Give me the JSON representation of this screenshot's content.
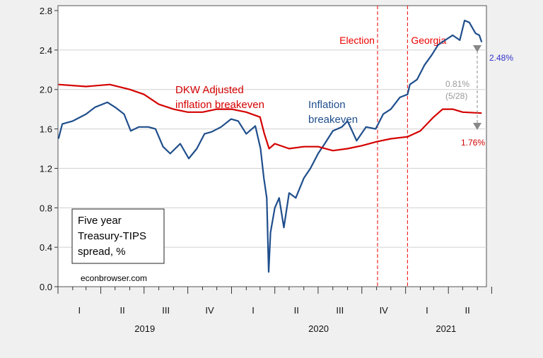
{
  "chart_data": {
    "type": "line",
    "title": "",
    "ylim": [
      0,
      2.8
    ],
    "yticks": [
      "0.0",
      "0.4",
      "0.8",
      "1.2",
      "1.6",
      "2.0",
      "2.4",
      "2.8"
    ],
    "xlim": [
      "2019-01-01",
      "2021-06-20"
    ],
    "quarter_labels": [
      "I",
      "II",
      "III",
      "IV",
      "I",
      "II",
      "III",
      "IV",
      "I",
      "II"
    ],
    "year_labels": [
      "2019",
      "2020",
      "2021"
    ],
    "grid": true,
    "legend_box": [
      "Five year",
      "Treasury-TIPS",
      "spread, %"
    ],
    "source": "econbrowser.com",
    "series": [
      {
        "name": "Inflation breakeven",
        "label_lines": [
          "Inflation",
          "breakeven"
        ],
        "color": "#1f4e8c",
        "points": [
          [
            "2019-01-02",
            1.5
          ],
          [
            "2019-01-10",
            1.65
          ],
          [
            "2019-02-01",
            1.68
          ],
          [
            "2019-03-01",
            1.75
          ],
          [
            "2019-03-20",
            1.82
          ],
          [
            "2019-04-15",
            1.87
          ],
          [
            "2019-05-01",
            1.82
          ],
          [
            "2019-05-20",
            1.75
          ],
          [
            "2019-06-03",
            1.58
          ],
          [
            "2019-06-20",
            1.62
          ],
          [
            "2019-07-10",
            1.62
          ],
          [
            "2019-07-25",
            1.6
          ],
          [
            "2019-08-10",
            1.42
          ],
          [
            "2019-08-25",
            1.35
          ],
          [
            "2019-09-15",
            1.45
          ],
          [
            "2019-10-03",
            1.3
          ],
          [
            "2019-10-20",
            1.4
          ],
          [
            "2019-11-05",
            1.55
          ],
          [
            "2019-11-20",
            1.57
          ],
          [
            "2019-12-10",
            1.62
          ],
          [
            "2019-12-31",
            1.7
          ],
          [
            "2020-01-15",
            1.68
          ],
          [
            "2020-02-01",
            1.55
          ],
          [
            "2020-02-20",
            1.63
          ],
          [
            "2020-03-02",
            1.4
          ],
          [
            "2020-03-09",
            1.1
          ],
          [
            "2020-03-15",
            0.9
          ],
          [
            "2020-03-19",
            0.15
          ],
          [
            "2020-03-23",
            0.55
          ],
          [
            "2020-04-01",
            0.8
          ],
          [
            "2020-04-10",
            0.9
          ],
          [
            "2020-04-20",
            0.6
          ],
          [
            "2020-05-01",
            0.95
          ],
          [
            "2020-05-15",
            0.9
          ],
          [
            "2020-06-01",
            1.1
          ],
          [
            "2020-06-15",
            1.2
          ],
          [
            "2020-07-01",
            1.35
          ],
          [
            "2020-07-15",
            1.45
          ],
          [
            "2020-08-01",
            1.58
          ],
          [
            "2020-08-20",
            1.62
          ],
          [
            "2020-09-01",
            1.68
          ],
          [
            "2020-09-20",
            1.48
          ],
          [
            "2020-10-10",
            1.62
          ],
          [
            "2020-10-30",
            1.6
          ],
          [
            "2020-11-15",
            1.75
          ],
          [
            "2020-12-01",
            1.8
          ],
          [
            "2020-12-20",
            1.92
          ],
          [
            "2021-01-05",
            1.95
          ],
          [
            "2021-01-10",
            2.05
          ],
          [
            "2021-01-25",
            2.1
          ],
          [
            "2021-02-10",
            2.25
          ],
          [
            "2021-02-25",
            2.35
          ],
          [
            "2021-03-10",
            2.45
          ],
          [
            "2021-03-25",
            2.5
          ],
          [
            "2021-04-10",
            2.55
          ],
          [
            "2021-04-25",
            2.5
          ],
          [
            "2021-05-05",
            2.7
          ],
          [
            "2021-05-15",
            2.68
          ],
          [
            "2021-05-28",
            2.57
          ],
          [
            "2021-06-05",
            2.55
          ],
          [
            "2021-06-10",
            2.48
          ]
        ]
      },
      {
        "name": "DKW Adjusted inflation breakeven",
        "label_lines": [
          "DKW Adjusted",
          "inflation breakeven"
        ],
        "color": "#d40000",
        "points": [
          [
            "2019-01-02",
            2.05
          ],
          [
            "2019-03-01",
            2.03
          ],
          [
            "2019-04-20",
            2.05
          ],
          [
            "2019-06-01",
            2.0
          ],
          [
            "2019-07-01",
            1.95
          ],
          [
            "2019-08-01",
            1.85
          ],
          [
            "2019-09-01",
            1.8
          ],
          [
            "2019-10-01",
            1.77
          ],
          [
            "2019-11-01",
            1.77
          ],
          [
            "2019-12-01",
            1.8
          ],
          [
            "2020-01-01",
            1.8
          ],
          [
            "2020-02-01",
            1.77
          ],
          [
            "2020-03-01",
            1.72
          ],
          [
            "2020-03-10",
            1.55
          ],
          [
            "2020-03-20",
            1.4
          ],
          [
            "2020-04-01",
            1.45
          ],
          [
            "2020-05-01",
            1.4
          ],
          [
            "2020-06-01",
            1.42
          ],
          [
            "2020-07-01",
            1.42
          ],
          [
            "2020-08-01",
            1.38
          ],
          [
            "2020-09-01",
            1.4
          ],
          [
            "2020-10-01",
            1.43
          ],
          [
            "2020-11-01",
            1.47
          ],
          [
            "2020-12-01",
            1.5
          ],
          [
            "2021-01-05",
            1.52
          ],
          [
            "2021-02-01",
            1.58
          ],
          [
            "2021-03-01",
            1.72
          ],
          [
            "2021-03-20",
            1.8
          ],
          [
            "2021-04-10",
            1.8
          ],
          [
            "2021-05-01",
            1.77
          ],
          [
            "2021-06-10",
            1.76
          ]
        ]
      }
    ],
    "events": [
      {
        "label": "Election",
        "date": "2020-11-03"
      },
      {
        "label": "Georgia",
        "date": "2021-01-05"
      }
    ],
    "annotations": {
      "blue_end": "2.48%",
      "red_end": "1.76%",
      "spread": "0.81%",
      "spread_date": "(5/28)"
    }
  }
}
